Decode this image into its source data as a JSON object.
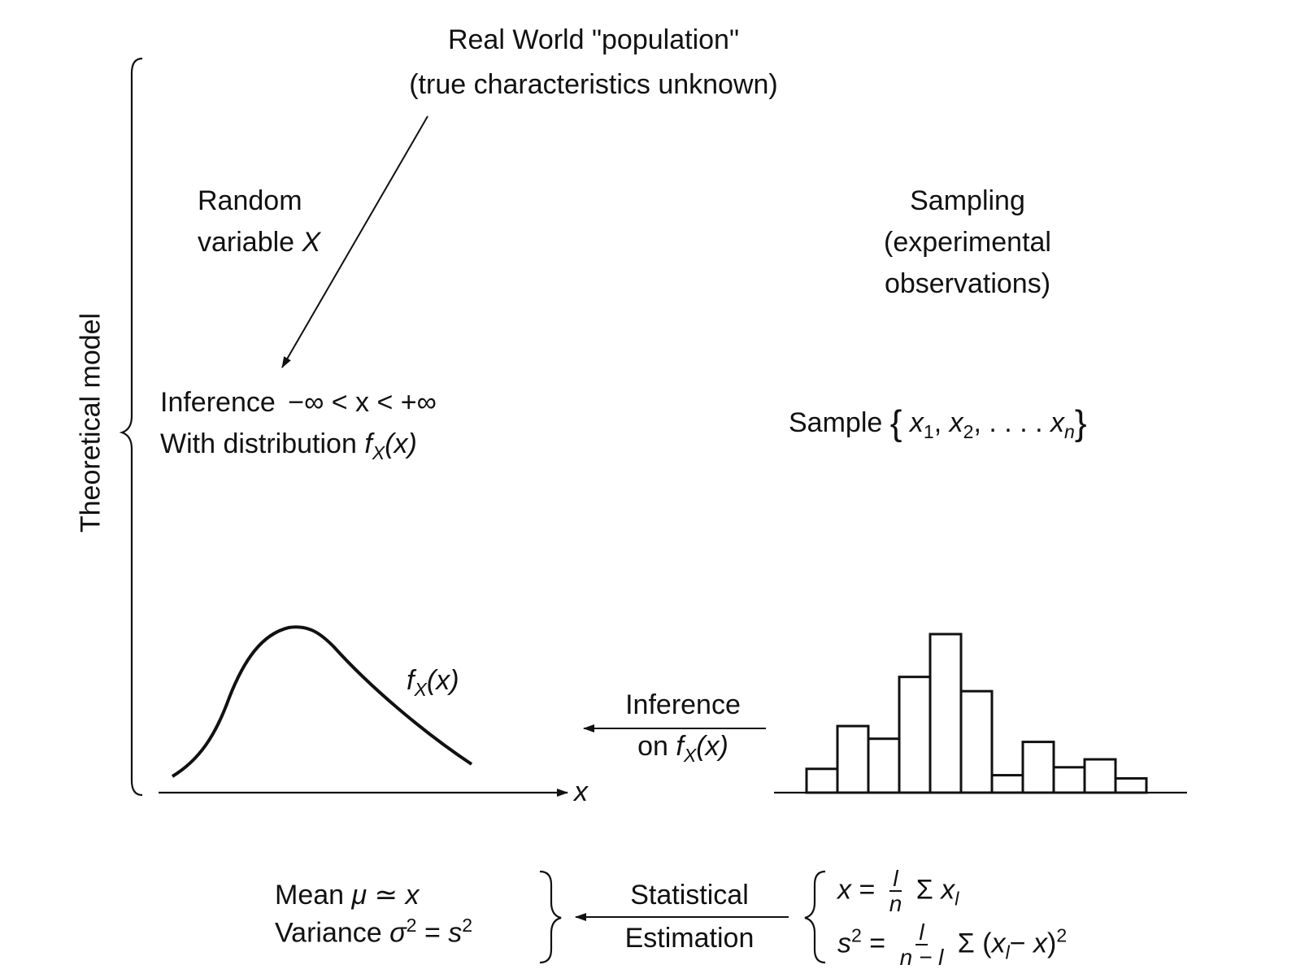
{
  "population": {
    "line1": "Real World \"population\"",
    "line2": "(true characteristics unknown)"
  },
  "random_variable": {
    "line1": "Random",
    "line2_text": "variable ",
    "line2_var": "X"
  },
  "sampling": {
    "line1": "Sampling",
    "line2": "(experimental",
    "line3": "observations)"
  },
  "theoretical_model": "Theoretical model",
  "inference_range": {
    "label": "Inference",
    "range": "−∞  < x < +∞"
  },
  "distribution": {
    "label": "With distribution ",
    "f": "f",
    "sub": "X",
    "arg": "(x)"
  },
  "sample": {
    "label": "Sample",
    "open": "{",
    "x1": "x",
    "x1_sub": "1",
    "sep1": ", ",
    "x2": "x",
    "x2_sub": "2",
    "dots": ", . . . . ",
    "xn": "x",
    "xn_sub": "n",
    "close": "}"
  },
  "curve_label": {
    "f": "f",
    "sub": "X",
    "arg": "(x)"
  },
  "axis_label": "x",
  "inference_arrow": {
    "line1": "Inference",
    "line2_text": "on ",
    "f": "f",
    "sub": "X",
    "arg": "(x)"
  },
  "histogram_bars": [
    0.15,
    0.42,
    0.34,
    0.73,
    1.0,
    0.64,
    0.11,
    0.32,
    0.16,
    0.21,
    0.09
  ],
  "results": {
    "mean_label": "Mean ",
    "mean_sym": "μ",
    "mean_rel": " ≃ ",
    "mean_val": "x",
    "var_label": "Variance ",
    "var_sym": "σ",
    "var_exp": "2",
    "var_rel": " = ",
    "var_val": "s",
    "var_val_exp": "2"
  },
  "statistical_estimation": {
    "line1": "Statistical",
    "line2": "Estimation"
  },
  "formulas": {
    "mean_lhs": "x",
    "mean_eq": " = ",
    "mean_num": "l",
    "mean_den": "n",
    "mean_sum": "Σ ",
    "mean_sum_var": "x",
    "mean_sum_sub": "l",
    "var_lhs": "s",
    "var_lhs_exp": "2",
    "var_eq": " = ",
    "var_num": "l",
    "var_den": "n − l",
    "var_sum": "Σ (",
    "var_x": "x",
    "var_x_sub": "l",
    "var_minus": "− ",
    "var_xbar": "x",
    "var_close": ")",
    "var_exp": "2"
  }
}
